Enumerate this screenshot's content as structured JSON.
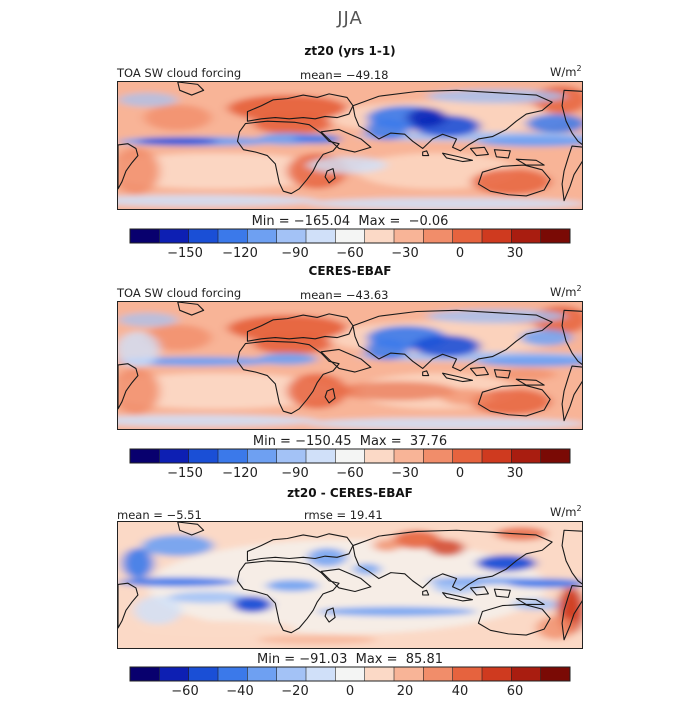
{
  "figure_title": "JJA",
  "panels": [
    {
      "title": "zt20 (yrs 1-1)",
      "left_label": "TOA SW cloud forcing",
      "center_label": "mean= −49.18",
      "unit": "W/m",
      "unit_sup": "2",
      "min_max": "Min = −165.04  Max =  −0.06",
      "colorbar_ticks": [
        "−150",
        "−120",
        "−90",
        "−60",
        "−30",
        "0",
        "30"
      ],
      "field": "model"
    },
    {
      "title": "CERES-EBAF",
      "left_label": "TOA SW cloud forcing",
      "center_label": "mean= −43.63",
      "unit": "W/m",
      "unit_sup": "2",
      "min_max": "Min = −150.45  Max =  37.76",
      "colorbar_ticks": [
        "−150",
        "−120",
        "−90",
        "−60",
        "−30",
        "0",
        "30"
      ],
      "field": "obs"
    },
    {
      "title": "zt20 - CERES-EBAF",
      "left_label": "mean =  −5.51",
      "center_label": "rmse =  19.41",
      "unit": "W/m",
      "unit_sup": "2",
      "min_max": "Min = −91.03  Max =  85.81",
      "colorbar_ticks": [
        "−60",
        "−40",
        "−20",
        "0",
        "20",
        "40",
        "60"
      ],
      "field": "diff"
    }
  ],
  "colors": {
    "palette": [
      "#08006e",
      "#0d1fb3",
      "#1a4fd6",
      "#3b79ea",
      "#6ea0f2",
      "#a3c2f6",
      "#d0e0f9",
      "#f4f5f4",
      "#fbd9c6",
      "#f8b497",
      "#f18d6a",
      "#e6633e",
      "#cf3a1f",
      "#a91d10",
      "#7a0a05"
    ]
  },
  "chart_data": [
    {
      "type": "heatmap",
      "title": "zt20 (yrs 1-1)",
      "variable": "TOA SW cloud forcing",
      "units": "W/m2",
      "mean": -49.18,
      "min": -165.04,
      "max": -0.06,
      "colorbar_range": [
        -180,
        60
      ],
      "colorbar_levels": 15,
      "colorbar_ticks": [
        -150,
        -120,
        -90,
        -60,
        -30,
        0,
        30
      ]
    },
    {
      "type": "heatmap",
      "title": "CERES-EBAF",
      "variable": "TOA SW cloud forcing",
      "units": "W/m2",
      "mean": -43.63,
      "min": -150.45,
      "max": 37.76,
      "colorbar_range": [
        -180,
        60
      ],
      "colorbar_levels": 15,
      "colorbar_ticks": [
        -150,
        -120,
        -90,
        -60,
        -30,
        0,
        30
      ]
    },
    {
      "type": "heatmap",
      "title": "zt20 - CERES-EBAF",
      "units": "W/m2",
      "mean": -5.51,
      "rmse": 19.41,
      "min": -91.03,
      "max": 85.81,
      "colorbar_range": [
        -80,
        80
      ],
      "colorbar_levels": 15,
      "colorbar_ticks": [
        -60,
        -40,
        -20,
        0,
        20,
        40,
        60
      ]
    }
  ]
}
